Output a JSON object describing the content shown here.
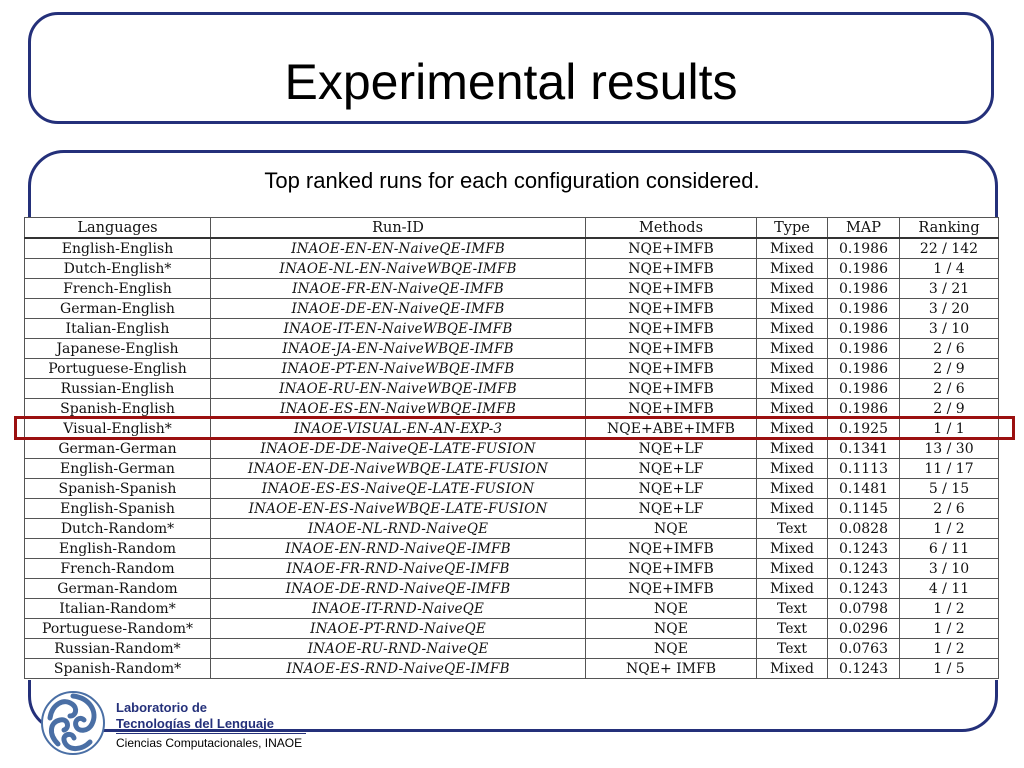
{
  "slide": {
    "title": "Experimental results",
    "subtitle": "Top ranked runs for each configuration considered."
  },
  "table": {
    "columns": [
      "Languages",
      "Run-ID",
      "Methods",
      "Type",
      "MAP",
      "Ranking"
    ],
    "rows": [
      [
        "English-English",
        "INAOE-EN-EN-NaiveQE-IMFB",
        "NQE+IMFB",
        "Mixed",
        "0.1986",
        "22 / 142"
      ],
      [
        "Dutch-English*",
        "INAOE-NL-EN-NaiveWBQE-IMFB",
        "NQE+IMFB",
        "Mixed",
        "0.1986",
        "1 / 4"
      ],
      [
        "French-English",
        "INAOE-FR-EN-NaiveQE-IMFB",
        "NQE+IMFB",
        "Mixed",
        "0.1986",
        "3 / 21"
      ],
      [
        "German-English",
        "INAOE-DE-EN-NaiveQE-IMFB",
        "NQE+IMFB",
        "Mixed",
        "0.1986",
        "3 / 20"
      ],
      [
        "Italian-English",
        "INAOE-IT-EN-NaiveWBQE-IMFB",
        "NQE+IMFB",
        "Mixed",
        "0.1986",
        "3 / 10"
      ],
      [
        "Japanese-English",
        "INAOE-JA-EN-NaiveWBQE-IMFB",
        "NQE+IMFB",
        "Mixed",
        "0.1986",
        "2 / 6"
      ],
      [
        "Portuguese-English",
        "INAOE-PT-EN-NaiveWBQE-IMFB",
        "NQE+IMFB",
        "Mixed",
        "0.1986",
        "2 / 9"
      ],
      [
        "Russian-English",
        "INAOE-RU-EN-NaiveWBQE-IMFB",
        "NQE+IMFB",
        "Mixed",
        "0.1986",
        "2 / 6"
      ],
      [
        "Spanish-English",
        "INAOE-ES-EN-NaiveWBQE-IMFB",
        "NQE+IMFB",
        "Mixed",
        "0.1986",
        "2 / 9"
      ],
      [
        "Visual-English*",
        "INAOE-VISUAL-EN-AN-EXP-3",
        "NQE+ABE+IMFB",
        "Mixed",
        "0.1925",
        "1 / 1"
      ],
      [
        "German-German",
        "INAOE-DE-DE-NaiveQE-LATE-FUSION",
        "NQE+LF",
        "Mixed",
        "0.1341",
        "13 / 30"
      ],
      [
        "English-German",
        "INAOE-EN-DE-NaiveWBQE-LATE-FUSION",
        "NQE+LF",
        "Mixed",
        "0.1113",
        "11 / 17"
      ],
      [
        "Spanish-Spanish",
        "INAOE-ES-ES-NaiveQE-LATE-FUSION",
        "NQE+LF",
        "Mixed",
        "0.1481",
        "5 / 15"
      ],
      [
        "English-Spanish",
        "INAOE-EN-ES-NaiveWBQE-LATE-FUSION",
        "NQE+LF",
        "Mixed",
        "0.1145",
        "2 / 6"
      ],
      [
        "Dutch-Random*",
        "INAOE-NL-RND-NaiveQE",
        "NQE",
        "Text",
        "0.0828",
        "1 / 2"
      ],
      [
        "English-Random",
        "INAOE-EN-RND-NaiveQE-IMFB",
        "NQE+IMFB",
        "Mixed",
        "0.1243",
        "6 / 11"
      ],
      [
        "French-Random",
        "INAOE-FR-RND-NaiveQE-IMFB",
        "NQE+IMFB",
        "Mixed",
        "0.1243",
        "3 / 10"
      ],
      [
        "German-Random",
        "INAOE-DE-RND-NaiveQE-IMFB",
        "NQE+IMFB",
        "Mixed",
        "0.1243",
        "4 / 11"
      ],
      [
        "Italian-Random*",
        "INAOE-IT-RND-NaiveQE",
        "NQE",
        "Text",
        "0.0798",
        "1 / 2"
      ],
      [
        "Portuguese-Random*",
        "INAOE-PT-RND-NaiveQE",
        "NQE",
        "Text",
        "0.0296",
        "1 / 2"
      ],
      [
        "Russian-Random*",
        "INAOE-RU-RND-NaiveQE",
        "NQE",
        "Text",
        "0.0763",
        "1 / 2"
      ],
      [
        "Spanish-Random*",
        "INAOE-ES-RND-NaiveQE-IMFB",
        "NQE+ IMFB",
        "Mixed",
        "0.1243",
        "1 / 5"
      ]
    ],
    "highlighted_row": 9,
    "highlight_color": "#9b1010"
  },
  "footer": {
    "lab_line1": "Laboratorio de",
    "lab_line2": "Tecnologías del Lenguaje",
    "lab_line3": "Ciencias Computacionales, INAOE",
    "logo_icon": "inaoe-spiral-logo"
  },
  "colors": {
    "frame": "#24307a",
    "highlight": "#9b1010",
    "logo": "#4a6fa5"
  }
}
